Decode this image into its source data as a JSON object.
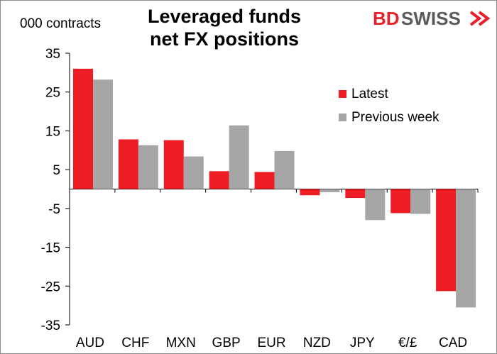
{
  "brand": {
    "name": "BDSWISS",
    "colors": {
      "bd": "#e8202a",
      "swiss": "#5a5a5a"
    }
  },
  "chart_data": {
    "type": "bar",
    "title": [
      "Leveraged funds",
      "net FX positions"
    ],
    "ylabel": "000 contracts",
    "categories": [
      "AUD",
      "CHF",
      "MXN",
      "GBP",
      "EUR",
      "NZD",
      "JPY",
      "€/£",
      "CAD"
    ],
    "series": [
      {
        "name": "Latest",
        "color": "#ee1c25",
        "values": [
          31,
          12.8,
          12.6,
          4.6,
          4.4,
          -1.6,
          -2.3,
          -6.2,
          -26.3
        ]
      },
      {
        "name": "Previous week",
        "color": "#a6a6a6",
        "values": [
          28.2,
          11.3,
          8.4,
          16.4,
          9.8,
          -0.8,
          -8.0,
          -6.4,
          -30.5
        ]
      }
    ],
    "ylim": [
      -35,
      35
    ],
    "yticks": [
      35,
      25,
      15,
      5,
      -5,
      -15,
      -25,
      -35
    ],
    "grid": false,
    "legend": "right"
  }
}
